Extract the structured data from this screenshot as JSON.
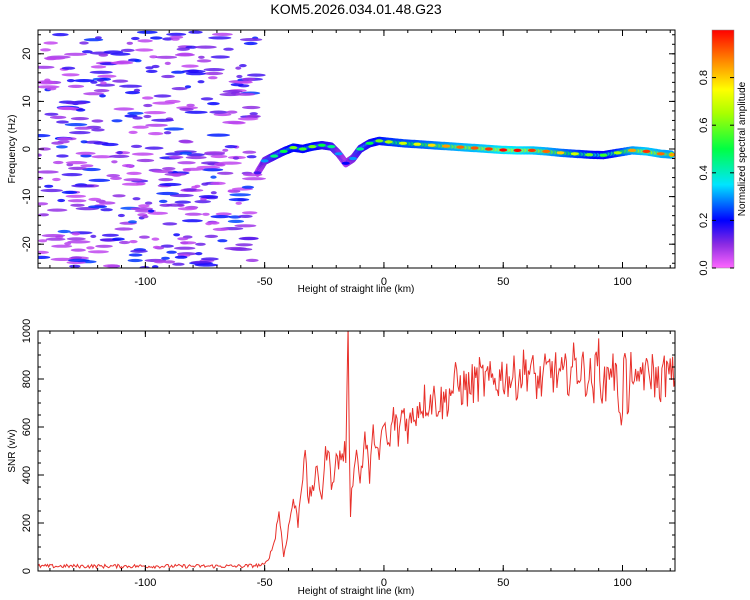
{
  "title": "KOM5.2026.034.01.48.G23",
  "chart_data": [
    {
      "type": "heatmap",
      "name": "spectrogram",
      "xlabel": "Height of straight line (km)",
      "ylabel": "Frequency (Hz)",
      "xlim": [
        -145,
        122
      ],
      "ylim": [
        -25,
        25
      ],
      "xticks": [
        -100,
        -50,
        0,
        50,
        100
      ],
      "yticks": [
        -20,
        -10,
        0,
        10,
        20
      ],
      "colorbar": {
        "label": "Normalized spectral amplitude",
        "range": [
          0,
          1
        ],
        "ticks": [
          0.0,
          0.2,
          0.4,
          0.6,
          0.8
        ]
      },
      "signal_trace": [
        {
          "x": -53,
          "f": -5,
          "amp": 0.15
        },
        {
          "x": -50,
          "f": -2.5,
          "amp": 0.3
        },
        {
          "x": -46,
          "f": -1.5,
          "amp": 0.45
        },
        {
          "x": -42,
          "f": -0.5,
          "amp": 0.5
        },
        {
          "x": -38,
          "f": 0.3,
          "amp": 0.6
        },
        {
          "x": -34,
          "f": 0,
          "amp": 0.55
        },
        {
          "x": -30,
          "f": 0.5,
          "amp": 0.6
        },
        {
          "x": -26,
          "f": 0.8,
          "amp": 0.5
        },
        {
          "x": -22,
          "f": 0.5,
          "amp": 0.45
        },
        {
          "x": -19,
          "f": -1,
          "amp": 0.3
        },
        {
          "x": -16,
          "f": -3,
          "amp": 0.2
        },
        {
          "x": -13,
          "f": -2,
          "amp": 0.3
        },
        {
          "x": -10,
          "f": 0,
          "amp": 0.45
        },
        {
          "x": -6,
          "f": 1.2,
          "amp": 0.5
        },
        {
          "x": -2,
          "f": 1.7,
          "amp": 0.6
        },
        {
          "x": 2,
          "f": 1.5,
          "amp": 0.65
        },
        {
          "x": 8,
          "f": 1.2,
          "amp": 0.7
        },
        {
          "x": 14,
          "f": 1,
          "amp": 0.72
        },
        {
          "x": 20,
          "f": 0.8,
          "amp": 0.78
        },
        {
          "x": 26,
          "f": 0.6,
          "amp": 0.85
        },
        {
          "x": 32,
          "f": 0.4,
          "amp": 0.9
        },
        {
          "x": 38,
          "f": 0.2,
          "amp": 0.92
        },
        {
          "x": 44,
          "f": 0,
          "amp": 0.95
        },
        {
          "x": 50,
          "f": -0.2,
          "amp": 1.0
        },
        {
          "x": 56,
          "f": -0.3,
          "amp": 1.0
        },
        {
          "x": 62,
          "f": -0.3,
          "amp": 0.95
        },
        {
          "x": 68,
          "f": -0.5,
          "amp": 0.9
        },
        {
          "x": 74,
          "f": -0.8,
          "amp": 0.8
        },
        {
          "x": 80,
          "f": -1,
          "amp": 0.7
        },
        {
          "x": 86,
          "f": -1.2,
          "amp": 0.6
        },
        {
          "x": 92,
          "f": -1.3,
          "amp": 0.55
        },
        {
          "x": 98,
          "f": -0.8,
          "amp": 0.65
        },
        {
          "x": 104,
          "f": -0.3,
          "amp": 0.85
        },
        {
          "x": 110,
          "f": -0.5,
          "amp": 0.95
        },
        {
          "x": 116,
          "f": -1,
          "amp": 0.9
        },
        {
          "x": 121,
          "f": -1.2,
          "amp": 0.85
        }
      ],
      "noise_region": {
        "x_from": -145,
        "x_to": -53,
        "amp_range": [
          0.05,
          0.25
        ]
      }
    },
    {
      "type": "line",
      "name": "snr",
      "xlabel": "Height of straight line (km)",
      "ylabel": "SNR (v/v)",
      "xlim": [
        -145,
        122
      ],
      "ylim": [
        0,
        1000
      ],
      "xticks": [
        -100,
        -50,
        0,
        50,
        100
      ],
      "yticks": [
        0,
        200,
        400,
        600,
        800,
        1000
      ],
      "color": "#e8302a",
      "series": [
        {
          "name": "SNR",
          "x": [
            -145,
            -120,
            -100,
            -80,
            -60,
            -50,
            -48,
            -46,
            -44,
            -42,
            -40,
            -38,
            -36,
            -34,
            -33,
            -32,
            -30,
            -28,
            -26,
            -24,
            -22,
            -20,
            -18,
            -16,
            -15,
            -14,
            -12,
            -10,
            -8,
            -6,
            -4,
            -2,
            0,
            2,
            4,
            6,
            8,
            10,
            15,
            20,
            25,
            30,
            35,
            40,
            45,
            50,
            55,
            60,
            65,
            70,
            75,
            80,
            85,
            88,
            90,
            92,
            95,
            98,
            100,
            101,
            102,
            104,
            106,
            108,
            110,
            112,
            115,
            118,
            122
          ],
          "y": [
            20,
            20,
            20,
            20,
            20,
            25,
            60,
            120,
            250,
            60,
            180,
            300,
            200,
            420,
            550,
            280,
            350,
            400,
            320,
            520,
            380,
            450,
            480,
            500,
            920,
            250,
            520,
            380,
            560,
            400,
            600,
            450,
            620,
            500,
            650,
            560,
            680,
            600,
            700,
            720,
            700,
            780,
            760,
            800,
            780,
            820,
            800,
            850,
            780,
            840,
            800,
            860,
            820,
            780,
            900,
            740,
            880,
            760,
            640,
            1000,
            620,
            880,
            720,
            860,
            800,
            840,
            780,
            820,
            800
          ]
        }
      ]
    }
  ]
}
